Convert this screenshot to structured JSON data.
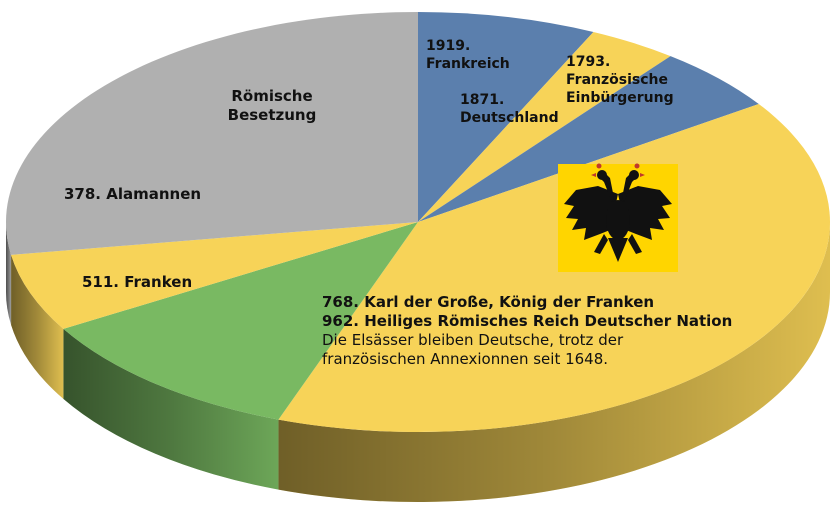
{
  "chart_data": {
    "type": "pie",
    "title": "",
    "slices": [
      {
        "label_lines": [
          "1919.",
          "Frankreich"
        ],
        "value": 7.0,
        "color": "#5b7fad"
      },
      {
        "label_lines": [
          "1871.",
          "Deutschland"
        ],
        "value": 3.5,
        "color": "#f7d358"
      },
      {
        "label_lines": [
          "1793.",
          "Französische",
          "Einbürgerung"
        ],
        "value": 5.0,
        "color": "#5b7fad"
      },
      {
        "label_lines": [
          "768. Karl der Große, König der Franken",
          "962. Heiliges Römisches Reich Deutscher Nation",
          "Die Elsässer bleiben Deutsche, trotz der",
          "französischen Annexionnen seit 1648."
        ],
        "value": 40.0,
        "color": "#f7d358"
      },
      {
        "label_lines": [
          "511. Franken"
        ],
        "value": 11.0,
        "color": "#79b962"
      },
      {
        "label_lines": [
          "378. Alamannen"
        ],
        "value": 6.0,
        "color": "#f7d358"
      },
      {
        "label_lines": [
          "Römische",
          "Besetzung"
        ],
        "value": 27.5,
        "color": "#b0b0b0"
      }
    ]
  },
  "emblem": {
    "name": "double-headed-eagle-icon",
    "background": "#ffd500",
    "color": "#111111"
  }
}
